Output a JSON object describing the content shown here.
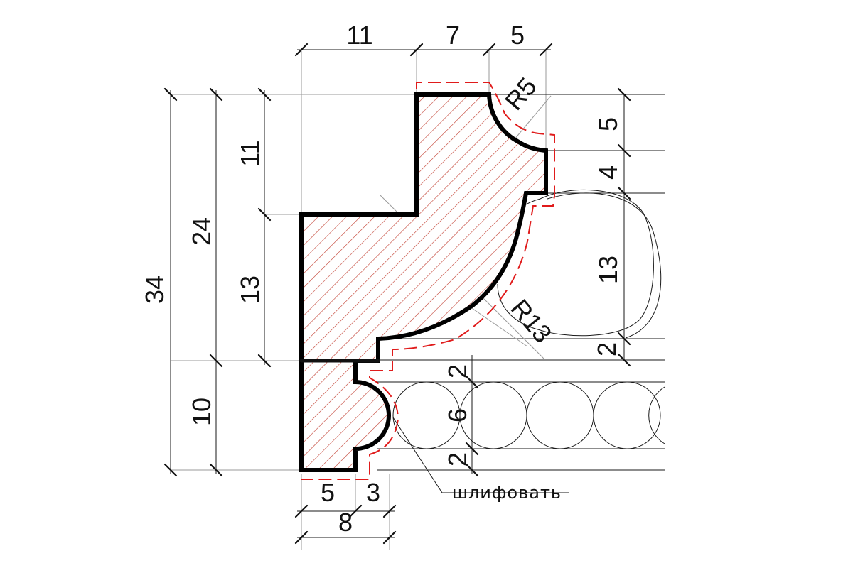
{
  "colors": {
    "hatch": "#c0392b",
    "sanding_line": "#e01b1b",
    "outline": "#000000"
  },
  "dimensions": {
    "top_11": "11",
    "top_7": "7",
    "top_5": "5",
    "radius_small": "R5",
    "left_34": "34",
    "left_24": "24",
    "left_11": "11",
    "left_13": "13",
    "left_10": "10",
    "right_5": "5",
    "right_4": "4",
    "right_13": "13",
    "right_2": "2",
    "radius_large": "R13",
    "bead_2_top": "2",
    "bead_6": "6",
    "bead_2_bottom": "2",
    "bottom_5": "5",
    "bottom_3": "3",
    "bottom_8": "8"
  },
  "note": "шлифовать"
}
